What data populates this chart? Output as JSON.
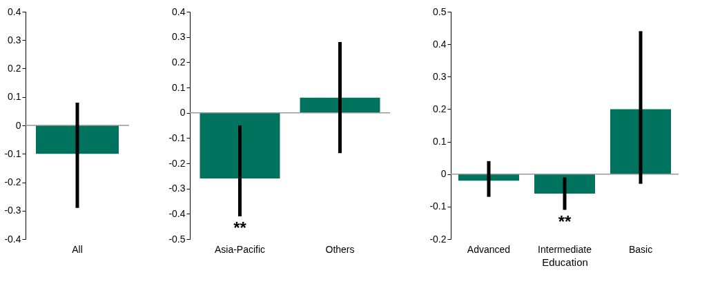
{
  "chart_data": [
    {
      "type": "bar",
      "categories": [
        "All"
      ],
      "values": [
        -0.1
      ],
      "errors": [
        [
          -0.29,
          0.08
        ]
      ],
      "color": "#00735f",
      "ylim": [
        -0.4,
        0.4
      ],
      "yticks": [
        -0.4,
        -0.3,
        -0.2,
        -0.1,
        0,
        0.1,
        0.2,
        0.3,
        0.4
      ]
    },
    {
      "type": "bar",
      "categories": [
        "Asia-Pacific",
        "Others"
      ],
      "values": [
        -0.26,
        0.06
      ],
      "errors": [
        [
          -0.41,
          -0.05
        ],
        [
          -0.16,
          0.28
        ]
      ],
      "color": "#00735f",
      "ylim": [
        -0.5,
        0.4
      ],
      "yticks": [
        -0.5,
        -0.4,
        -0.3,
        -0.2,
        -0.1,
        0,
        0.1,
        0.2,
        0.3,
        0.4
      ],
      "annotations": [
        "**"
      ]
    },
    {
      "type": "bar",
      "xlabel": "Education",
      "categories": [
        "Advanced",
        "Intermediate",
        "Basic"
      ],
      "values": [
        -0.02,
        -0.06,
        0.2
      ],
      "errors": [
        [
          -0.07,
          0.04
        ],
        [
          -0.11,
          -0.01
        ],
        [
          -0.03,
          0.44
        ]
      ],
      "color": "#00735f",
      "ylim": [
        -0.2,
        0.5
      ],
      "yticks": [
        -0.2,
        -0.1,
        0,
        0.1,
        0.2,
        0.3,
        0.4,
        0.5
      ],
      "annotations": [
        "**"
      ]
    }
  ]
}
